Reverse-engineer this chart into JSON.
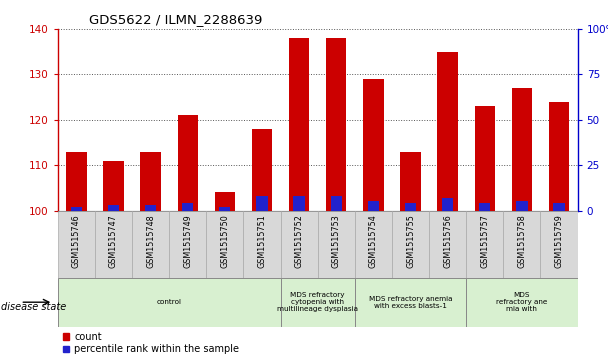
{
  "title": "GDS5622 / ILMN_2288639",
  "samples": [
    "GSM1515746",
    "GSM1515747",
    "GSM1515748",
    "GSM1515749",
    "GSM1515750",
    "GSM1515751",
    "GSM1515752",
    "GSM1515753",
    "GSM1515754",
    "GSM1515755",
    "GSM1515756",
    "GSM1515757",
    "GSM1515758",
    "GSM1515759"
  ],
  "counts": [
    113,
    111,
    113,
    121,
    104,
    118,
    138,
    138,
    129,
    113,
    135,
    123,
    127,
    124
  ],
  "percentile_ranks": [
    2,
    3,
    3,
    4,
    2,
    8,
    8,
    8,
    5,
    4,
    7,
    4,
    5,
    4
  ],
  "bar_base": 100,
  "ylim_left": [
    100,
    140
  ],
  "ylim_right": [
    0,
    100
  ],
  "yticks_left": [
    100,
    110,
    120,
    130,
    140
  ],
  "yticks_right": [
    0,
    25,
    50,
    75,
    100
  ],
  "bar_color": "#cc0000",
  "percentile_color": "#2222cc",
  "bar_width": 0.55,
  "groups": [
    {
      "label": "control",
      "start": 0,
      "end": 6,
      "color": "#d8f0d0"
    },
    {
      "label": "MDS refractory\ncytopenia with\nmultilineage dysplasia",
      "start": 6,
      "end": 8,
      "color": "#d8f0d0"
    },
    {
      "label": "MDS refractory anemia\nwith excess blasts-1",
      "start": 8,
      "end": 11,
      "color": "#d8f0d0"
    },
    {
      "label": "MDS\nrefractory ane\nmia with",
      "start": 11,
      "end": 14,
      "color": "#d8f0d0"
    }
  ],
  "disease_state_label": "disease state",
  "legend_count_label": "count",
  "legend_percentile_label": "percentile rank within the sample",
  "background_color": "#ffffff",
  "plot_bg_color": "#ffffff",
  "right_axis_color": "#0000cc",
  "left_axis_color": "#cc0000",
  "dotted_grid_color": "#555555",
  "xtick_bg_color": "#d8d8d8"
}
